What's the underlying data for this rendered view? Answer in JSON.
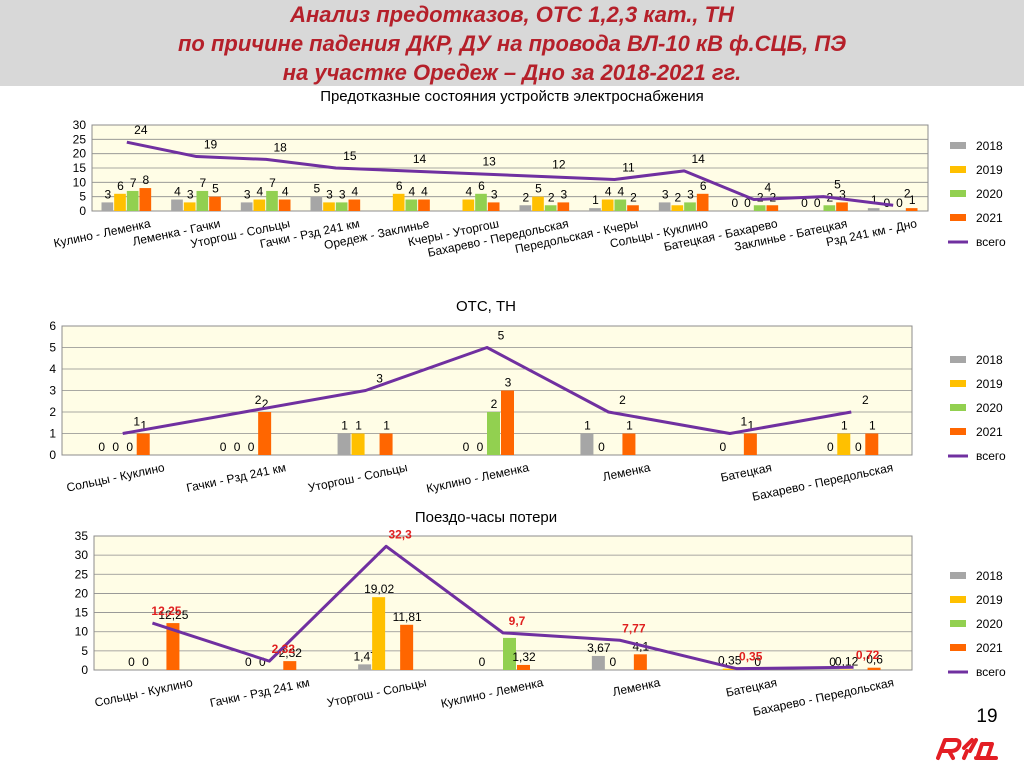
{
  "header": {
    "title_lines": [
      "Анализ предотказов, ОТС 1,2,3 кат., ТН",
      "по причине падения ДКР, ДУ на провода ВЛ-10 кВ ф.СЦБ, ПЭ",
      "на участке Оредеж – Дно за 2018-2021 гг."
    ]
  },
  "page_number": "19",
  "colors": {
    "title": "#b5202a",
    "plot_bg": "#fffde6",
    "s2018": "#a6a6a6",
    "s2019": "#ffc000",
    "s2020": "#92d050",
    "s2021": "#ff6600",
    "total": "#7030a0",
    "total_label_chart3": "#e02020",
    "logo": "#e31e24"
  },
  "legend_labels": [
    "2018",
    "2019",
    "2020",
    "2021",
    "всего"
  ],
  "chart_data": [
    {
      "type": "bar",
      "title": "Предотказные состояния устройств электроснабжения",
      "ylim": [
        0,
        30
      ],
      "yticks": [
        "0",
        "5",
        "10",
        "15",
        "20",
        "25",
        "30"
      ],
      "grid": true,
      "legend_position": "right",
      "categories": [
        "Кулино - Леменка",
        "Леменка - Гачки",
        "Уторгош - Сольцы",
        "Гачки - Рзд 241 км",
        "Оредеж - Заклинье",
        "Кчеры - Уторгош",
        "Бахарево - Передольская",
        "Передольская - Кчеры",
        "Сольцы - Куклино",
        "Батецкая - Бахарево",
        "Заклинье - Батецкая",
        "Рзд 241 км - Дно"
      ],
      "series": [
        {
          "name": "2018",
          "values": [
            3,
            4,
            3,
            5,
            0,
            0,
            2,
            1,
            3,
            0,
            0,
            1
          ]
        },
        {
          "name": "2019",
          "values": [
            6,
            3,
            4,
            3,
            6,
            4,
            5,
            4,
            2,
            0,
            0,
            0
          ]
        },
        {
          "name": "2020",
          "values": [
            7,
            7,
            7,
            3,
            4,
            6,
            2,
            4,
            3,
            2,
            2,
            0
          ]
        },
        {
          "name": "2021",
          "values": [
            8,
            5,
            4,
            4,
            4,
            3,
            3,
            2,
            6,
            2,
            3,
            1
          ]
        }
      ],
      "total": {
        "name": "всего",
        "values": [
          24,
          19,
          18,
          15,
          14,
          13,
          12,
          11,
          14,
          4,
          5,
          2
        ]
      },
      "bar_labels": [
        [
          "3",
          "4",
          "3",
          "5",
          "",
          "",
          "2",
          "1",
          "3",
          "0",
          "0",
          "1"
        ],
        [
          "6",
          "3",
          "4",
          "3",
          "6",
          "4",
          "5",
          "4",
          "2",
          "0",
          "0",
          "0"
        ],
        [
          "7",
          "7",
          "7",
          "3",
          "4",
          "6",
          "2",
          "4",
          "3",
          "2",
          "2",
          "0"
        ],
        [
          "8",
          "5",
          "4",
          "4",
          "4",
          "3",
          "3",
          "2",
          "6",
          "2",
          "3",
          "1"
        ]
      ],
      "total_labels": [
        "24",
        "19",
        "18",
        "15",
        "14",
        "13",
        "12",
        "11",
        "14",
        "4",
        "5",
        "2"
      ]
    },
    {
      "type": "bar",
      "title": "ОТС, ТН",
      "ylim": [
        0,
        6
      ],
      "yticks": [
        "0",
        "1",
        "2",
        "3",
        "4",
        "5",
        "6"
      ],
      "grid": true,
      "legend_position": "right",
      "categories": [
        "Сольцы - Куклино",
        "Гачки - Рзд 241 км",
        "Уторгош - Сольцы",
        "Куклино - Леменка",
        "Леменка",
        "Батецкая",
        "Бахарево - Передольская"
      ],
      "series": [
        {
          "name": "2018",
          "values": [
            0,
            0,
            1,
            0,
            1,
            0,
            0
          ]
        },
        {
          "name": "2019",
          "values": [
            0,
            0,
            1,
            0,
            0,
            0,
            1
          ]
        },
        {
          "name": "2020",
          "values": [
            0,
            0,
            0,
            2,
            0,
            0,
            0
          ]
        },
        {
          "name": "2021",
          "values": [
            1,
            2,
            1,
            3,
            1,
            1,
            1
          ]
        }
      ],
      "total": {
        "name": "всего",
        "values": [
          1,
          2,
          3,
          5,
          2,
          1,
          2
        ]
      },
      "bar_labels": [
        [
          "0",
          "0",
          "1",
          "0",
          "1",
          "",
          "0"
        ],
        [
          "0",
          "0",
          "1",
          "0",
          "0",
          "0",
          "1"
        ],
        [
          "0",
          "0",
          "",
          "2",
          "",
          "",
          "0"
        ],
        [
          "1",
          "2",
          "1",
          "3",
          "1",
          "1",
          "1"
        ]
      ],
      "total_labels": [
        "1",
        "2",
        "3",
        "5",
        "2",
        "1",
        "2"
      ]
    },
    {
      "type": "bar",
      "title": "Поездо-часы потери",
      "ylim": [
        0,
        35
      ],
      "yticks": [
        "0",
        "5",
        "10",
        "15",
        "20",
        "25",
        "30",
        "35"
      ],
      "grid": true,
      "legend_position": "right",
      "categories": [
        "Сольцы - Куклино",
        "Гачки - Рзд 241 км",
        "Уторгош - Сольцы",
        "Куклино - Леменка",
        "Леменка",
        "Батецкая",
        "Бахарево - Передольская"
      ],
      "series": [
        {
          "name": "2018",
          "values": [
            0,
            0,
            1.47,
            0,
            3.67,
            0,
            0
          ]
        },
        {
          "name": "2019",
          "values": [
            0,
            0,
            19.02,
            0,
            0,
            0.35,
            0.12
          ]
        },
        {
          "name": "2020",
          "values": [
            0,
            0,
            0,
            8.38,
            0,
            0,
            0
          ]
        },
        {
          "name": "2021",
          "values": [
            12.25,
            2.32,
            11.81,
            1.32,
            4.1,
            0,
            0.6
          ]
        }
      ],
      "total": {
        "name": "всего",
        "values": [
          12.25,
          2.32,
          32.3,
          9.7,
          7.77,
          0.35,
          0.72
        ]
      },
      "bar_labels": [
        [
          "0",
          "0",
          "1,47",
          "0",
          "3,67",
          "",
          "0"
        ],
        [
          "0",
          "0",
          "19,02",
          "",
          "0",
          "0,35",
          "0,12"
        ],
        [
          "",
          "",
          "",
          "",
          "",
          "",
          ""
        ],
        [
          "12,25",
          "2,32",
          "11,81",
          "1,32",
          "4,1",
          "0",
          "0,6"
        ]
      ],
      "total_labels": [
        "12,25",
        "2,32",
        "32,3",
        "9,7",
        "7,77",
        "0,35",
        "0,72"
      ]
    }
  ]
}
